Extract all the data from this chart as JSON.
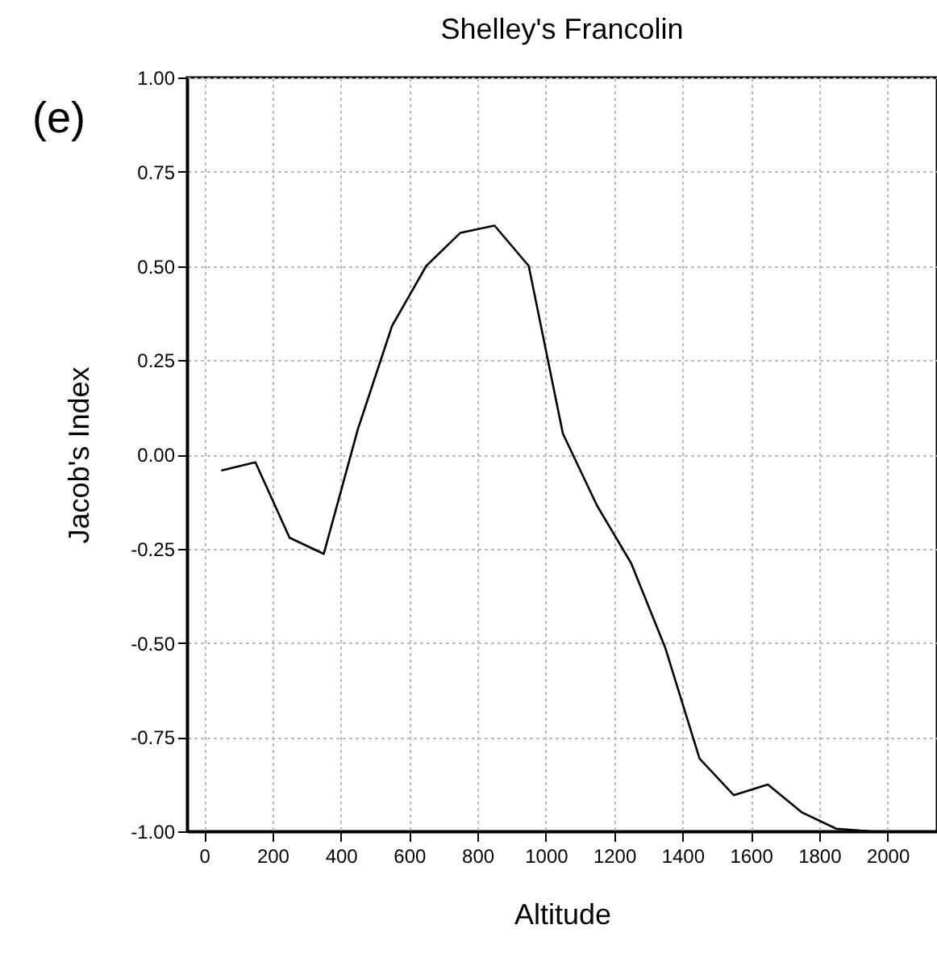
{
  "chart_data": {
    "type": "line",
    "title": "Shelley's Francolin",
    "xlabel": "Altitude",
    "ylabel": "Jacob's Index",
    "annotations": [
      "(e)"
    ],
    "x": [
      50,
      150,
      250,
      350,
      450,
      550,
      650,
      750,
      850,
      950,
      1050,
      1150,
      1250,
      1350,
      1450,
      1550,
      1650,
      1750,
      1850,
      1950
    ],
    "series": [
      {
        "color": "#000000",
        "values": [
          -0.043,
          -0.021,
          -0.221,
          -0.264,
          0.067,
          0.341,
          0.5,
          0.588,
          0.607,
          0.5,
          0.055,
          -0.136,
          -0.289,
          -0.514,
          -0.807,
          -0.904,
          -0.876,
          -0.95,
          -0.993,
          -1.0
        ]
      }
    ],
    "xlim": [
      -50,
      2145
    ],
    "xticks": [
      0,
      200,
      400,
      600,
      800,
      1000,
      1200,
      1400,
      1600,
      1800,
      2000
    ],
    "ylim": [
      -1,
      1
    ],
    "yticks": [
      {
        "value": -1,
        "label": "-1.00"
      },
      {
        "value": -0.75,
        "label": "-0.75"
      },
      {
        "value": -0.5,
        "label": "-0.50"
      },
      {
        "value": -0.25,
        "label": "-0.25"
      },
      {
        "value": 0,
        "label": "0.00"
      },
      {
        "value": 0.25,
        "label": "0.25"
      },
      {
        "value": 0.5,
        "label": "0.50"
      },
      {
        "value": 0.75,
        "label": "0.75"
      },
      {
        "value": 1,
        "label": "1.00"
      }
    ],
    "grid": true,
    "marker": "none",
    "line_style": "solid",
    "legend": false
  }
}
